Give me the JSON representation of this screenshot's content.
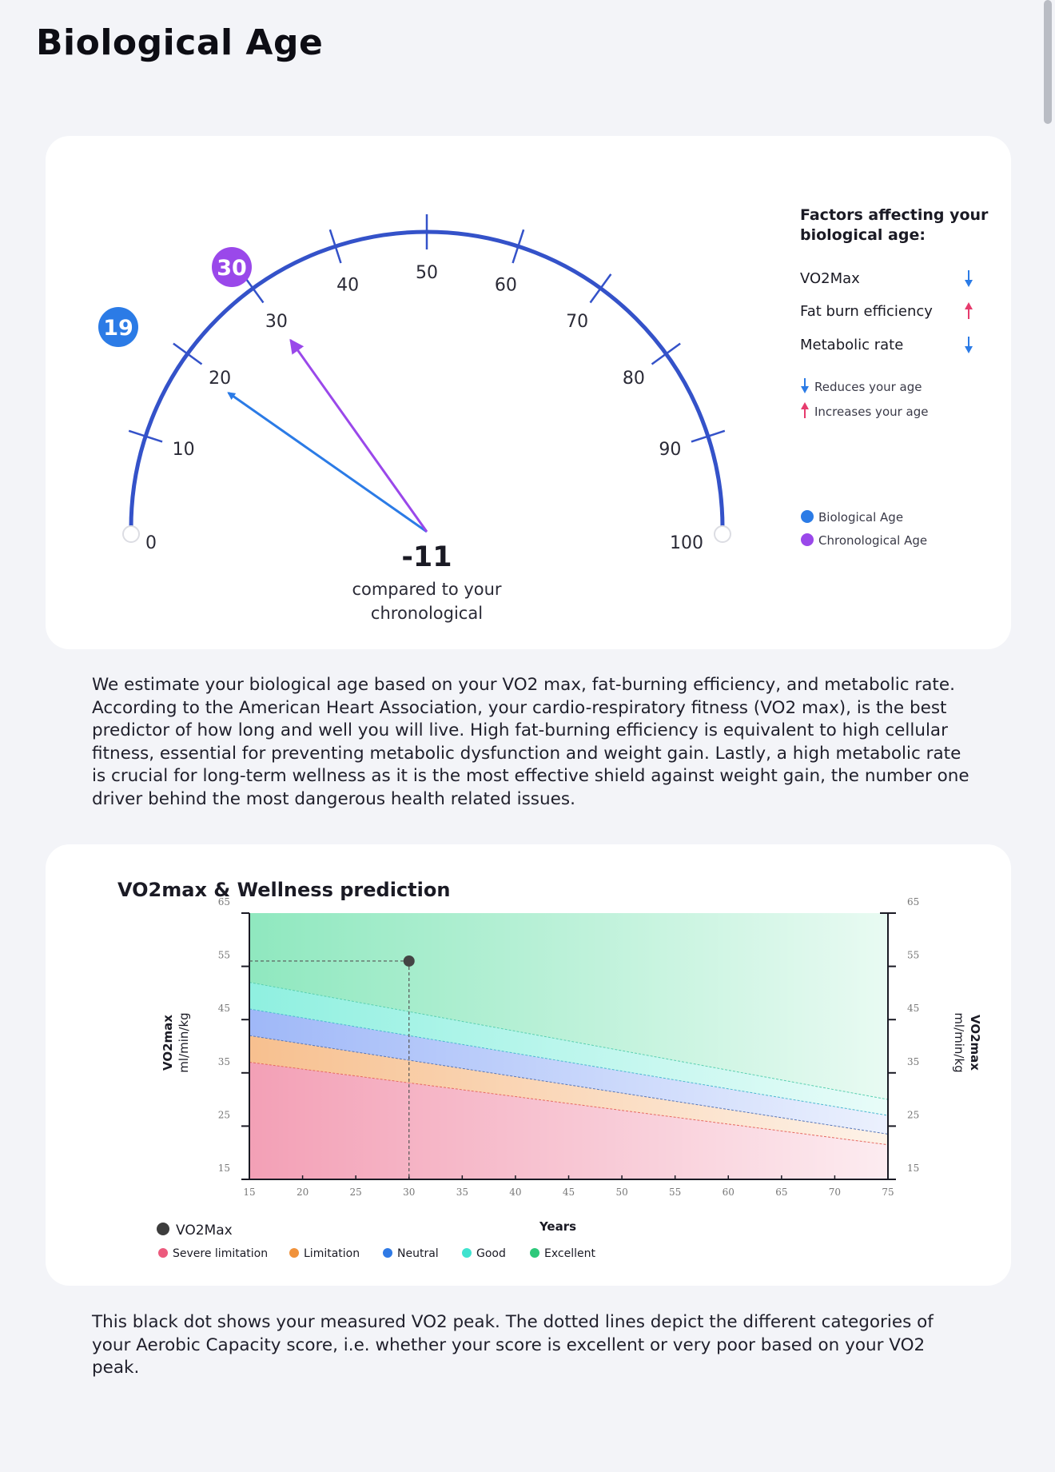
{
  "page": {
    "title": "Biological Age"
  },
  "gauge": {
    "ticks": [
      "0",
      "10",
      "20",
      "30",
      "40",
      "50",
      "60",
      "70",
      "80",
      "90",
      "100"
    ],
    "biological_age": 19,
    "chronological_age": 30,
    "biological_badge": "19",
    "chronological_badge": "30",
    "difference": "-11",
    "difference_caption_1": "compared to your",
    "difference_caption_2": "chronological",
    "colors": {
      "arc": "#3452c9",
      "biological": "#2b7be6",
      "chronological": "#9a48ea"
    }
  },
  "factors": {
    "title_1": "Factors affecting your",
    "title_2": "biological age:",
    "items": [
      {
        "label": "VO2Max",
        "effect": "down"
      },
      {
        "label": "Fat burn efficiency",
        "effect": "up"
      },
      {
        "label": "Metabolic rate",
        "effect": "down"
      }
    ],
    "key_reduce": "Reduces your age",
    "key_increase": "Increases your age",
    "legend_biological": "Biological Age",
    "legend_chronological": "Chronological Age"
  },
  "paragraph_1": "We estimate your biological age based on your VO2 max, fat-burning efficiency, and metabolic rate. According to the American Heart Association, your cardio-respiratory fitness (VO2 max), is the best predictor of how long and well you will live. High fat-burning efficiency is equivalent to high cellular fitness, essential for preventing metabolic dysfunction and weight gain. Lastly, a high metabolic rate is crucial for long-term wellness as it is the most effective shield against weight gain, the number one driver behind the most dangerous health related issues.",
  "chart_data": {
    "type": "area",
    "title": "VO2max & Wellness prediction",
    "xlabel": "Years",
    "ylabel": "VO2max",
    "ylabel_unit": "ml/min/kg",
    "xlim": [
      15,
      75
    ],
    "ylim": [
      15,
      65
    ],
    "x_ticks": [
      "15",
      "20",
      "25",
      "30",
      "35",
      "40",
      "45",
      "50",
      "55",
      "60",
      "65",
      "70",
      "75"
    ],
    "y_ticks": [
      "65",
      "55",
      "45",
      "35",
      "25",
      "15"
    ],
    "boundaries": [
      {
        "name": "Limitation",
        "x": [
          15,
          75
        ],
        "y": [
          37,
          21.5
        ]
      },
      {
        "name": "Neutral",
        "x": [
          15,
          75
        ],
        "y": [
          42,
          23.5
        ]
      },
      {
        "name": "Good",
        "x": [
          15,
          75
        ],
        "y": [
          47,
          27
        ]
      },
      {
        "name": "Excellent",
        "x": [
          15,
          75
        ],
        "y": [
          52,
          30
        ]
      }
    ],
    "point": {
      "name": "VO2Max",
      "x": 30,
      "y": 56
    },
    "legend": [
      {
        "name": "Severe limitation",
        "color": "#ec5a7d"
      },
      {
        "name": "Limitation",
        "color": "#f0923b"
      },
      {
        "name": "Neutral",
        "color": "#2f7ae5"
      },
      {
        "name": "Good",
        "color": "#3fe3cf"
      },
      {
        "name": "Excellent",
        "color": "#2dc87a"
      }
    ],
    "point_legend": "VO2Max"
  },
  "paragraph_2": "This black dot shows your measured VO2 peak. The dotted lines depict the different categories of your Aerobic Capacity score, i.e. whether your score is excellent or very poor based on your VO2 peak."
}
